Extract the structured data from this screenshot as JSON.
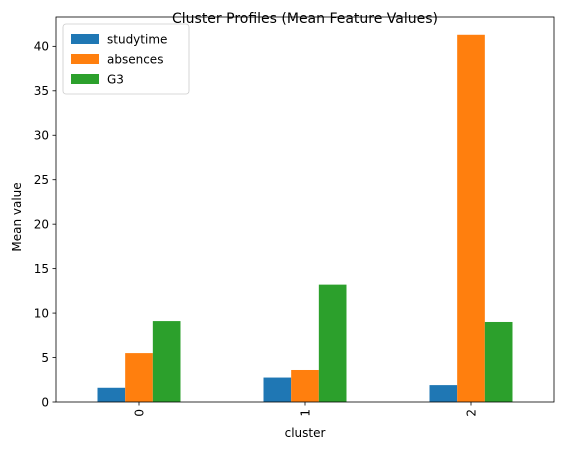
{
  "chart_data": {
    "type": "bar",
    "title": "Cluster Profiles (Mean Feature Values)",
    "xlabel": "cluster",
    "ylabel": "Mean value",
    "categories": [
      "0",
      "1",
      "2"
    ],
    "series": [
      {
        "name": "studytime",
        "color": "#1f77b4",
        "values": [
          1.6,
          2.75,
          1.9
        ]
      },
      {
        "name": "absences",
        "color": "#ff7f0e",
        "values": [
          5.5,
          3.6,
          41.3
        ]
      },
      {
        "name": "G3",
        "color": "#2ca02c",
        "values": [
          9.1,
          13.2,
          9.0
        ]
      }
    ],
    "ylim": [
      0,
      43.3
    ],
    "yticks": [
      0,
      5,
      10,
      15,
      20,
      25,
      30,
      35,
      40
    ],
    "grid": false,
    "legend_position": "top-left"
  }
}
